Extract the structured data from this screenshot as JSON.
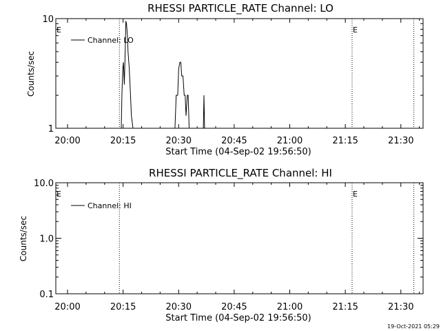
{
  "footer_timestamp": "19-Oct-2021 05:29",
  "chart_data": [
    {
      "type": "line",
      "title": "RHESSI PARTICLE_RATE Channel: LO",
      "xlabel": "Start Time (04-Sep-02 19:56:50)",
      "ylabel": "Counts/sec",
      "yscale": "log",
      "ylim": [
        1,
        10
      ],
      "xlim": [
        "19:56:50",
        "21:36:00"
      ],
      "x_ticks": [
        "20:00",
        "20:15",
        "20:30",
        "20:45",
        "21:00",
        "21:15",
        "21:30"
      ],
      "y_ticks": [
        "1",
        "10"
      ],
      "legend": {
        "label": "Channel: LO",
        "position": "top-left"
      },
      "markers": [
        {
          "label": "E",
          "time": "19:56:50"
        },
        {
          "time": "20:14:00"
        },
        {
          "label": "E",
          "time": "21:16:50"
        },
        {
          "time": "21:33:30"
        }
      ],
      "series": [
        {
          "name": "Channel: LO",
          "x": [
            "20:14:30",
            "20:14:40",
            "20:14:55",
            "20:15:05",
            "20:15:20",
            "20:15:30",
            "20:15:45",
            "20:15:55",
            "20:16:10",
            "20:16:20",
            "20:16:40",
            "20:17:00",
            "20:17:15",
            "20:17:40",
            "20:17:55",
            "20:29:00",
            "20:29:20",
            "20:29:45",
            "20:30:00",
            "20:30:20",
            "20:30:35",
            "20:30:50",
            "20:31:10",
            "20:31:30",
            "20:31:45",
            "20:32:00",
            "20:32:20",
            "20:32:35",
            "20:32:50",
            "20:33:05",
            "20:33:20",
            "20:36:40",
            "20:36:50",
            "20:37:00"
          ],
          "y": [
            1,
            2,
            3.5,
            4,
            2.5,
            4,
            9.5,
            9,
            7,
            5,
            3.5,
            2,
            1.3,
            1,
            null,
            1,
            2,
            2,
            3.5,
            4,
            4,
            3,
            3,
            2,
            2,
            1.3,
            2,
            2,
            1,
            1,
            null,
            1,
            2,
            1
          ]
        }
      ]
    },
    {
      "type": "line",
      "title": "RHESSI PARTICLE_RATE Channel: HI",
      "xlabel": "Start Time (04-Sep-02 19:56:50)",
      "ylabel": "Counts/sec",
      "yscale": "log",
      "ylim": [
        0.1,
        10
      ],
      "xlim": [
        "19:56:50",
        "21:36:00"
      ],
      "x_ticks": [
        "20:00",
        "20:15",
        "20:30",
        "20:45",
        "21:00",
        "21:15",
        "21:30"
      ],
      "y_ticks": [
        "0.1",
        "1.0",
        "10.0"
      ],
      "legend": {
        "label": "Channel: HI",
        "position": "top-left"
      },
      "markers": [
        {
          "label": "E",
          "time": "19:56:50"
        },
        {
          "time": "20:14:00"
        },
        {
          "label": "E",
          "time": "21:16:50"
        },
        {
          "time": "21:33:30"
        }
      ],
      "series": [
        {
          "name": "Channel: HI",
          "x": [],
          "y": []
        }
      ]
    }
  ]
}
